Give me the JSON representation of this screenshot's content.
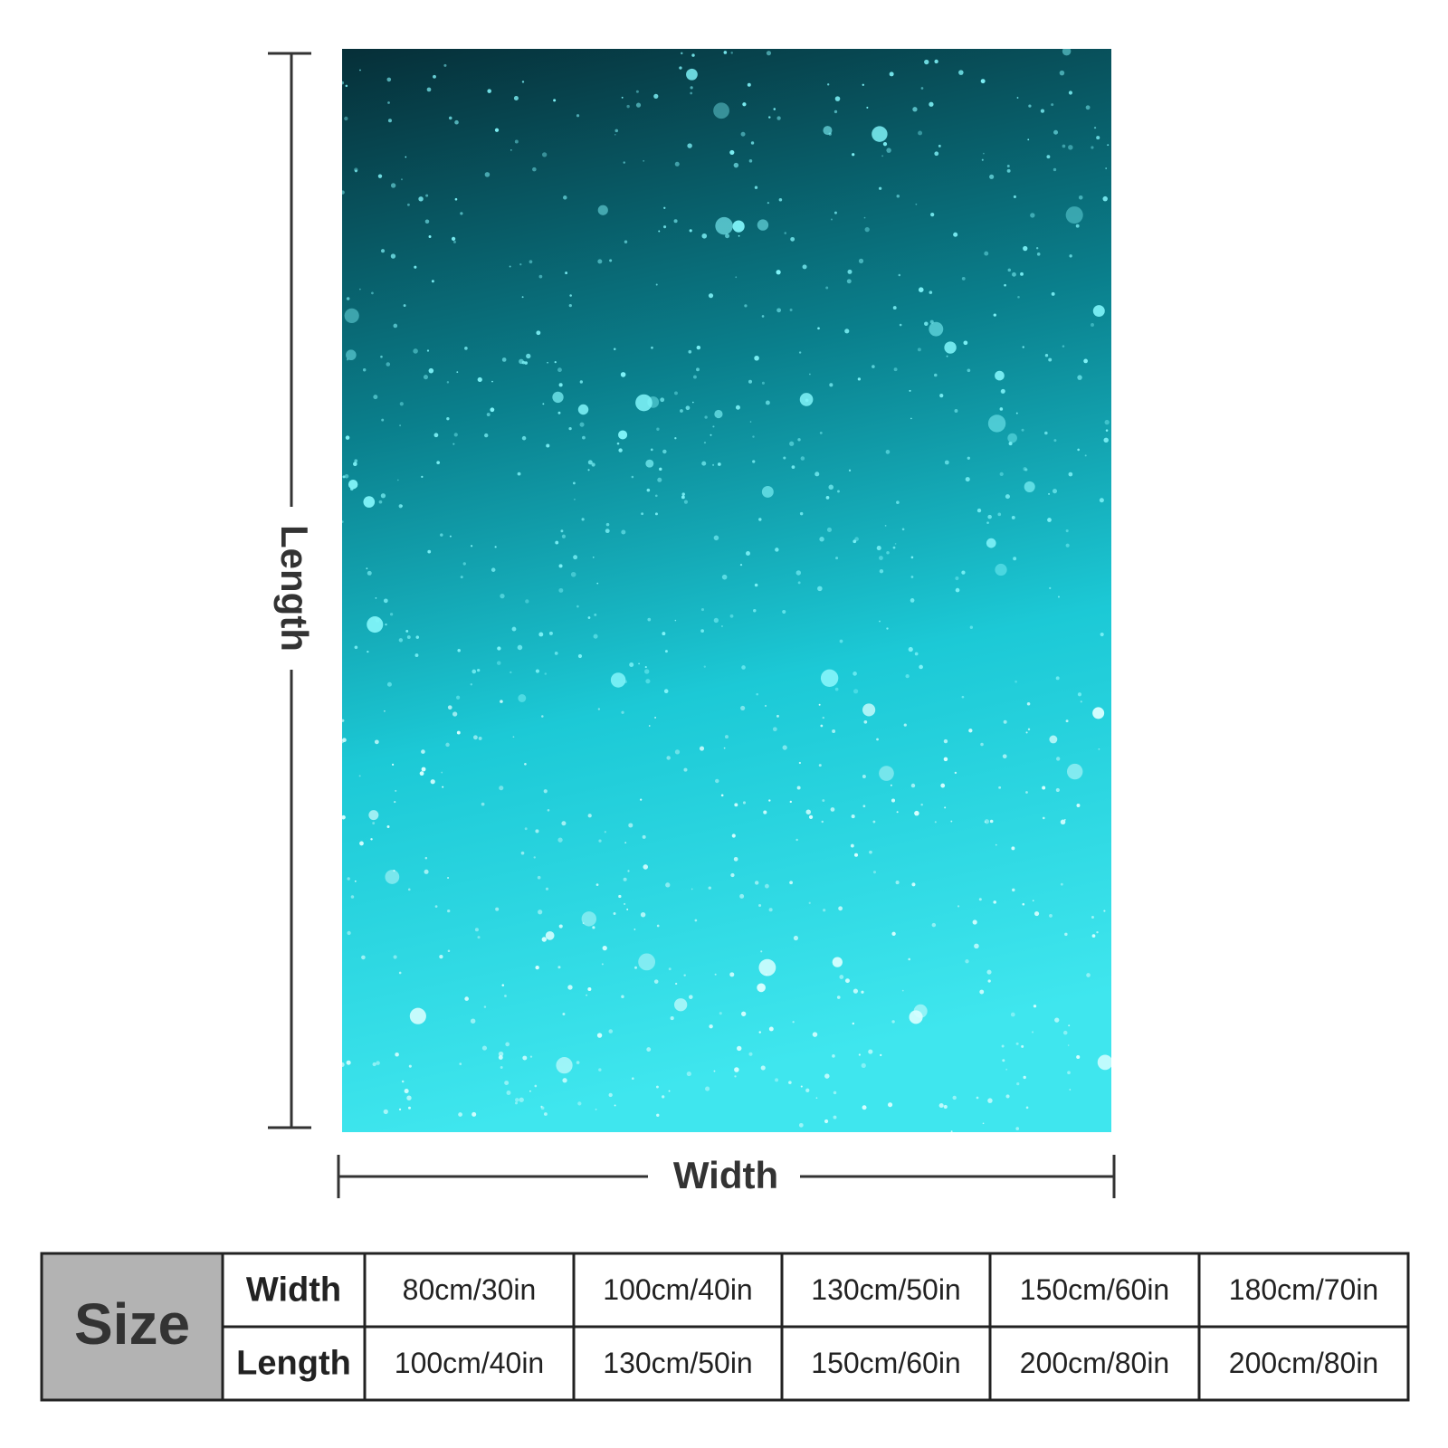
{
  "length_label": "Length",
  "width_label": "Width",
  "table": {
    "corner": "Size",
    "rows": [
      [
        "Width",
        "80cm/30in",
        "100cm/40in",
        "130cm/50in",
        "150cm/60in",
        "180cm/70in"
      ],
      [
        "Length",
        "100cm/40in",
        "130cm/50in",
        "150cm/60in",
        "200cm/80in",
        "200cm/80in"
      ]
    ]
  }
}
